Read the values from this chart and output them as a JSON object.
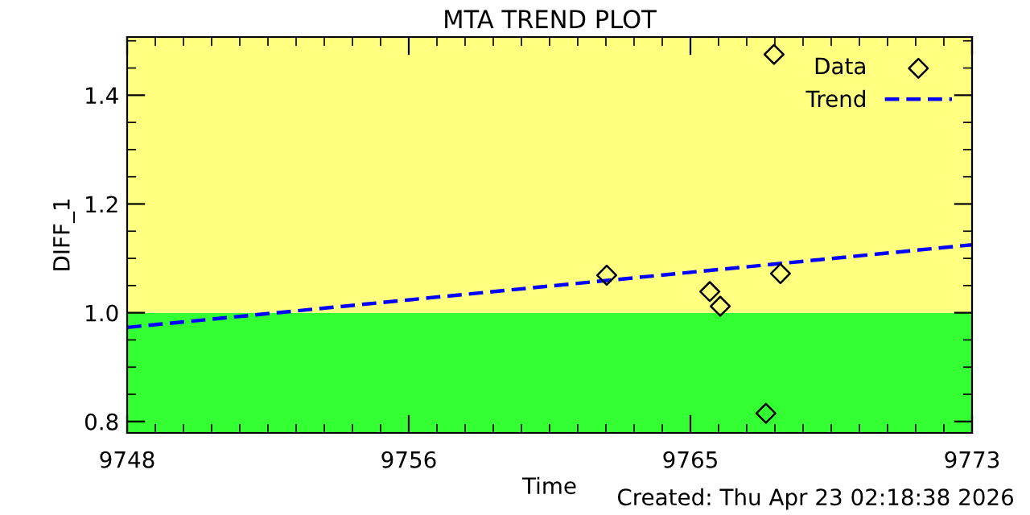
{
  "chart_data": {
    "type": "scatter",
    "title": "MTA TREND PLOT",
    "xlabel": "Time",
    "ylabel": "DIFF_1",
    "xlim": [
      9748,
      9773
    ],
    "ylim": [
      0.779,
      1.507
    ],
    "xticks": [
      {
        "value": 9748,
        "label": "9748"
      },
      {
        "value": 9756.333,
        "label": "9756"
      },
      {
        "value": 9764.667,
        "label": "9765"
      },
      {
        "value": 9773,
        "label": "9773"
      }
    ],
    "yticks": [
      {
        "value": 0.8,
        "label": "0.8"
      },
      {
        "value": 1,
        "label": "1.0"
      },
      {
        "value": 1.2,
        "label": "1.2"
      },
      {
        "value": 1.4,
        "label": "1.4"
      }
    ],
    "bands": [
      {
        "axis": "y",
        "from": 0.779,
        "to": 1,
        "color": "#33ff33"
      },
      {
        "axis": "y",
        "from": 1,
        "to": 1.507,
        "color": "#ffff80"
      }
    ],
    "series": [
      {
        "name": "Data",
        "color": "#000000",
        "marker": "diamond",
        "x": [
          9762.19,
          9767.14,
          9765.24,
          9765.55,
          9766.9,
          9767.33
        ],
        "values": [
          1.069,
          1.475,
          1.039,
          1.012,
          0.815,
          1.072
        ]
      },
      {
        "name": "Trend",
        "type": "line",
        "color": "#0000ff",
        "line_style": "dashed",
        "x": [
          9748,
          9773
        ],
        "values": [
          0.973,
          1.125
        ]
      }
    ],
    "legend": "top right",
    "grid": false,
    "annotations": [
      "Created: Thu Apr 23 02:18:38 2026"
    ]
  }
}
